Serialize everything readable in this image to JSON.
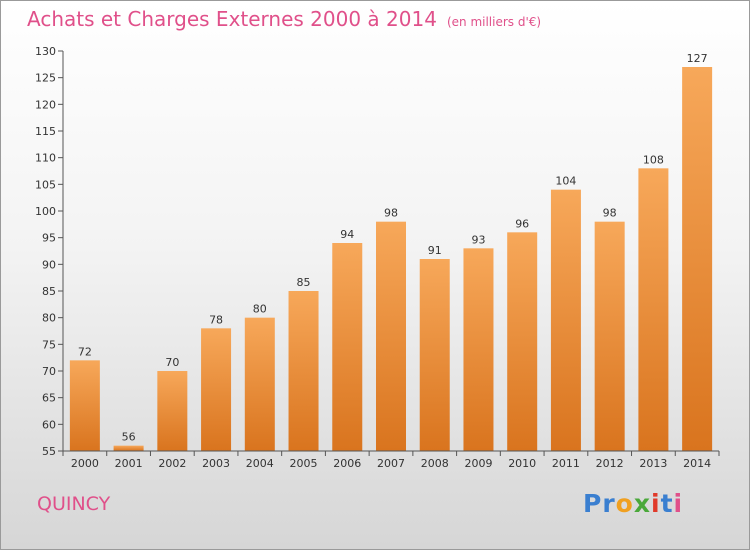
{
  "header": {
    "title": "Achats et Charges Externes 2000 à 2014",
    "unit": "(en milliers d'€)"
  },
  "footer": {
    "city": "QUINCY",
    "brand": "Proxiti",
    "brand_letters": [
      {
        "ch": "P",
        "color": "#3a7fd0"
      },
      {
        "ch": "r",
        "color": "#3a7fd0"
      },
      {
        "ch": "o",
        "color": "#f0a020"
      },
      {
        "ch": "x",
        "color": "#4aa83a"
      },
      {
        "ch": "i",
        "color": "#e03a2a"
      },
      {
        "ch": "t",
        "color": "#3a7fd0"
      },
      {
        "ch": "i",
        "color": "#e0508a"
      }
    ]
  },
  "chart_data": {
    "type": "bar",
    "title": "Achats et Charges Externes 2000 à 2014",
    "subtitle": "(en milliers d'€)",
    "categories": [
      "2000",
      "2001",
      "2002",
      "2003",
      "2004",
      "2005",
      "2006",
      "2007",
      "2008",
      "2009",
      "2010",
      "2011",
      "2012",
      "2013",
      "2014"
    ],
    "values": [
      72,
      56,
      70,
      78,
      80,
      85,
      94,
      98,
      91,
      93,
      96,
      104,
      98,
      108,
      127
    ],
    "ylim": [
      55,
      130
    ],
    "yticks": [
      55,
      60,
      65,
      70,
      75,
      80,
      85,
      90,
      95,
      100,
      105,
      110,
      115,
      120,
      125,
      130
    ],
    "grid": false,
    "legend": "none",
    "colors": {
      "bar_top": "#f7a85a",
      "bar_bottom": "#d9741e",
      "axis": "#555555"
    }
  }
}
